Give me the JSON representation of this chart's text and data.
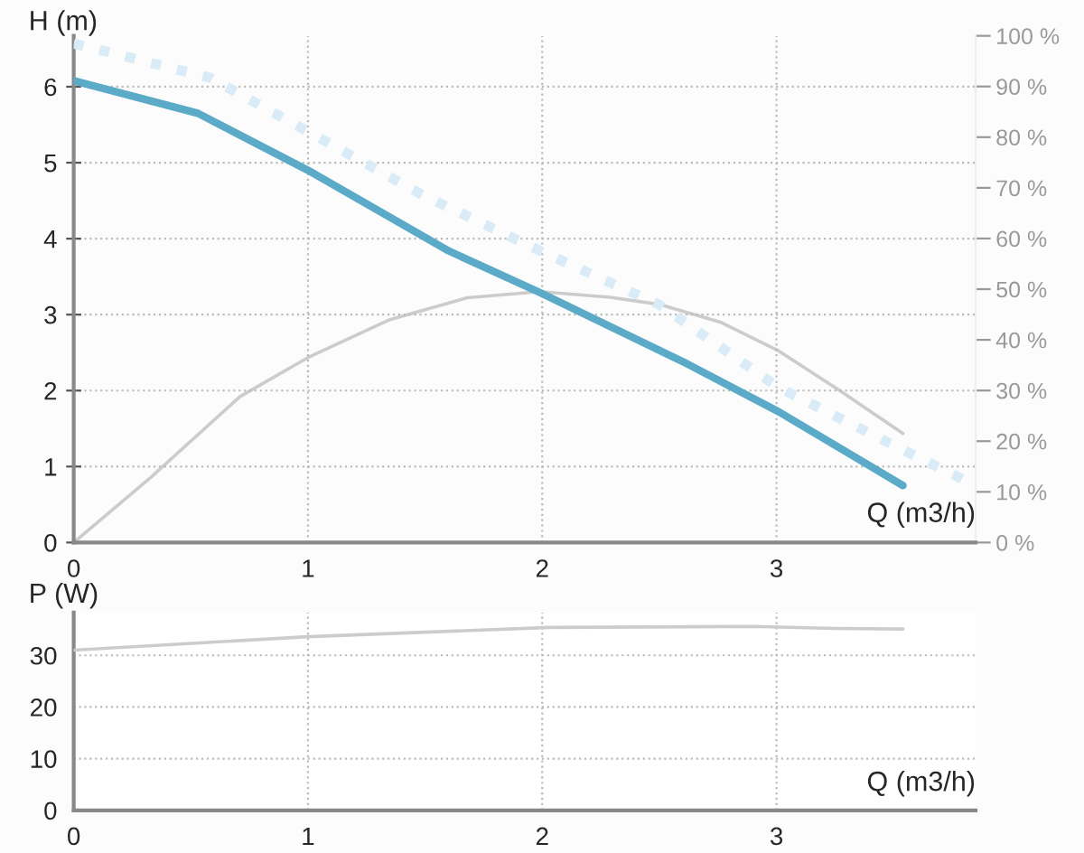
{
  "chart_data": [
    {
      "type": "line",
      "ylabel": "H (m)",
      "xlabel": "Q (m3/h)",
      "xlim": [
        0,
        3.85
      ],
      "xticks": [
        0,
        1,
        2,
        3
      ],
      "ylim": [
        0,
        6.67
      ],
      "yticks": [
        0,
        1,
        2,
        3,
        4,
        5,
        6
      ],
      "y2lim": [
        0,
        100
      ],
      "y2ticks": [
        {
          "value": 0,
          "label": "0 %"
        },
        {
          "value": 10,
          "label": "10 %"
        },
        {
          "value": 20,
          "label": "20 %"
        },
        {
          "value": 30,
          "label": "30 %"
        },
        {
          "value": 40,
          "label": "40 %"
        },
        {
          "value": 50,
          "label": "50 %"
        },
        {
          "value": 60,
          "label": "60 %"
        },
        {
          "value": 70,
          "label": "70 %"
        },
        {
          "value": 80,
          "label": "80 %"
        },
        {
          "value": 90,
          "label": "90 %"
        },
        {
          "value": 100,
          "label": "100 %"
        }
      ],
      "grid": true,
      "legend": false,
      "marker": "none",
      "series": [
        {
          "color": "#d8ebf6",
          "line_style": "dotted",
          "x": [
            0,
            0.58,
            1.0,
            1.48,
            1.99,
            2.5,
            3.01,
            3.52,
            3.83
          ],
          "values": [
            6.57,
            6.12,
            5.41,
            4.59,
            3.84,
            3.13,
            2.04,
            1.25,
            0.78
          ]
        },
        {
          "color": "#cccccc",
          "line_style": "solid",
          "axis": "y2",
          "x": [
            0,
            0.33,
            0.71,
            1.0,
            1.35,
            1.68,
            1.99,
            2.29,
            2.5,
            2.76,
            3.01,
            3.27,
            3.54
          ],
          "values": [
            0,
            12.9,
            28.8,
            36.5,
            44,
            48.3,
            49.5,
            48.4,
            47,
            43.5,
            37.8,
            30,
            21.5
          ]
        },
        {
          "color": "#5aaac8",
          "line_style": "solid",
          "x": [
            0,
            0.53,
            1.0,
            1.6,
            1.99,
            2.62,
            3.01,
            3.54
          ],
          "values": [
            6.08,
            5.65,
            4.9,
            3.84,
            3.29,
            2.35,
            1.72,
            0.75
          ]
        }
      ]
    },
    {
      "type": "line",
      "ylabel": "P (W)",
      "xlabel": "Q (m3/h)",
      "xlim": [
        0,
        3.85
      ],
      "xticks": [
        0,
        1,
        2,
        3
      ],
      "ylim": [
        0,
        38.3
      ],
      "yticks": [
        0,
        10,
        20,
        30
      ],
      "grid": true,
      "legend": false,
      "marker": "none",
      "series": [
        {
          "color": "#cccccc",
          "line_style": "solid",
          "x": [
            0,
            1.0,
            2.03,
            2.9,
            3.25,
            3.54
          ],
          "values": [
            31,
            33.6,
            35.4,
            35.6,
            35.2,
            35.1
          ]
        }
      ]
    }
  ]
}
